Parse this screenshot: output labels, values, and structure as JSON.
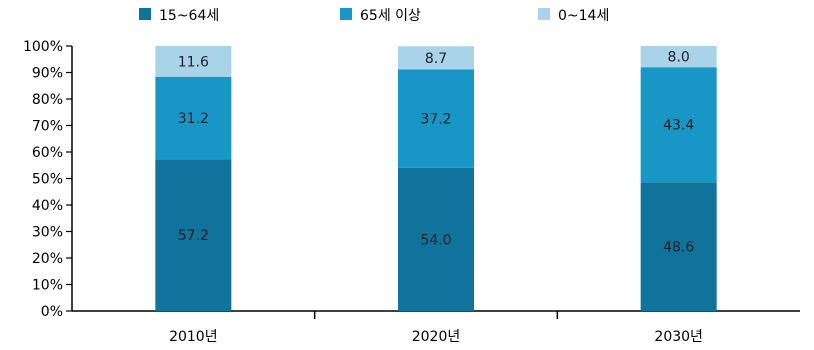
{
  "chart_data": {
    "type": "bar",
    "stacked": true,
    "categories": [
      "2010년",
      "2020년",
      "2030년"
    ],
    "series": [
      {
        "name": "15~64세",
        "values": [
          57.2,
          54.0,
          48.6
        ],
        "labels": [
          "57.2",
          "54.0",
          "48.6"
        ],
        "color": "#0f739b"
      },
      {
        "name": "65세 이상",
        "values": [
          31.2,
          37.2,
          43.4
        ],
        "labels": [
          "31.2",
          "37.2",
          "43.4"
        ],
        "color": "#1897c6"
      },
      {
        "name": "0~14세",
        "values": [
          11.6,
          8.7,
          8.0
        ],
        "labels": [
          "11.6",
          "8.7",
          "8.0"
        ],
        "color": "#a8d3e8"
      }
    ],
    "yticks": [
      "0%",
      "10%",
      "20%",
      "30%",
      "40%",
      "50%",
      "60%",
      "70%",
      "80%",
      "90%",
      "100%"
    ],
    "ylim": [
      0,
      100
    ],
    "title": "",
    "xlabel": "",
    "ylabel": "",
    "legend": "top",
    "grid": false
  }
}
